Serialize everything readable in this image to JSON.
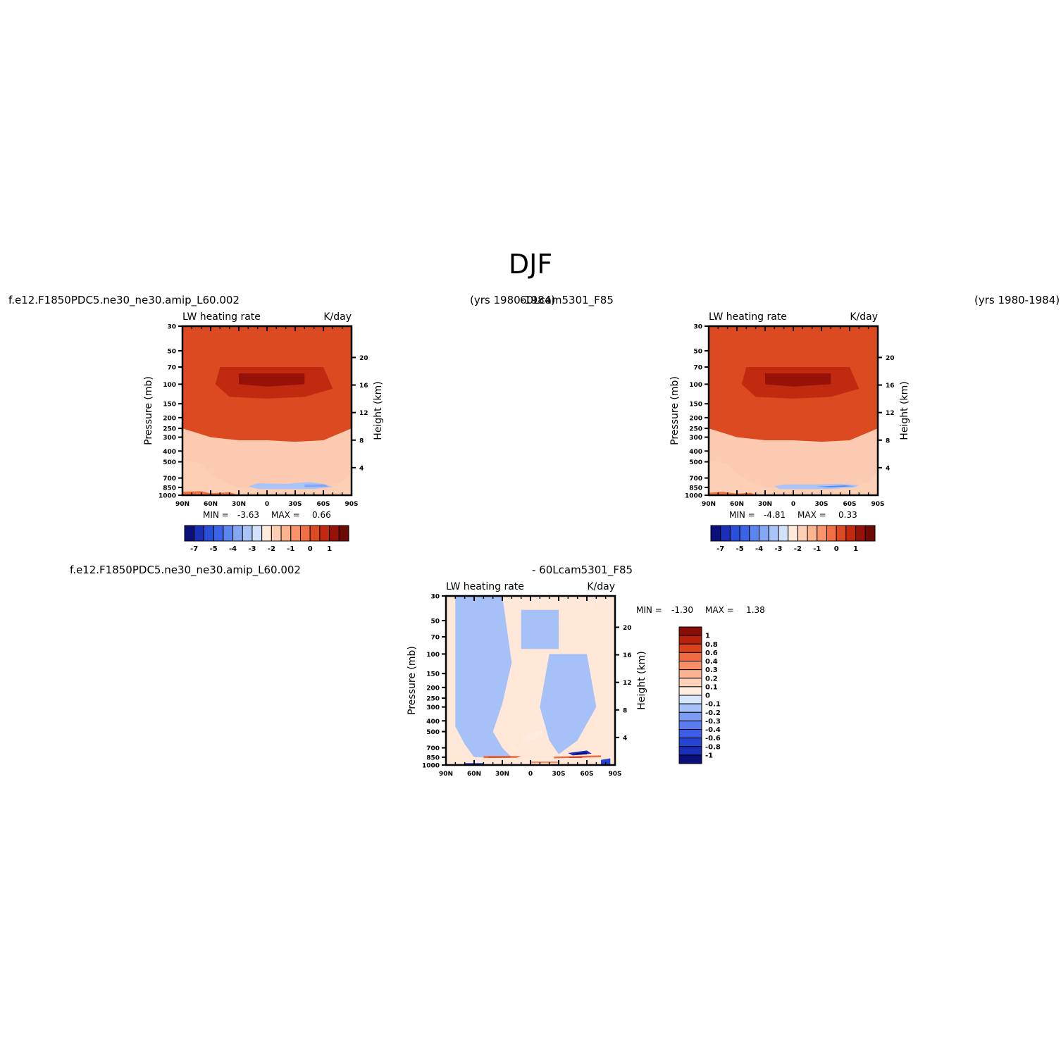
{
  "page": {
    "season_title": "DJF",
    "panel1": {
      "case_name": "f.e12.F1850PDC5.ne30_ne30.amip_L60.002",
      "years": "(yrs 1980-1984)"
    },
    "panel2": {
      "case_name": "60Lcam5301_F85",
      "years": "(yrs 1980-1984)"
    },
    "panel3": {
      "case_name": "f.e12.F1850PDC5.ne30_ne30.amip_L60.002",
      "minus_case": "- 60Lcam5301_F85"
    }
  },
  "colors": {
    "abs_scale": [
      "#0b0f7a",
      "#1a2fb8",
      "#2a4fd8",
      "#3a63e8",
      "#5a86f0",
      "#84a7f5",
      "#aac4f8",
      "#d2e2fb",
      "#ffeadc",
      "#fdd0b6",
      "#fcb48e",
      "#f99468",
      "#f07044",
      "#dc4a22",
      "#c22a10",
      "#961208",
      "#6e0a04"
    ],
    "diff_scale": [
      "#0b0f7a",
      "#1a2fb8",
      "#2443d2",
      "#3a5ce6",
      "#5a7cf0",
      "#7c9cf4",
      "#a6c0f8",
      "#d6e6fc",
      "#ffece0",
      "#fdd2b8",
      "#fbb290",
      "#f88e64",
      "#ef6a40",
      "#d9441c",
      "#b8220c",
      "#8a0c06"
    ],
    "frame": "#000000"
  },
  "chart_data": [
    {
      "type": "heatmap",
      "title": "LW heating rate",
      "units": "K/day",
      "xlabel": "",
      "ylabel": "Pressure (mb)",
      "ylabel_right": "Height (km)",
      "x_ticks": [
        "90N",
        "60N",
        "30N",
        "0",
        "30S",
        "60S",
        "90S"
      ],
      "y_ticks": [
        "30",
        "50",
        "70",
        "100",
        "150",
        "200",
        "250",
        "300",
        "400",
        "500",
        "700",
        "850",
        "1000"
      ],
      "y_right_ticks": [
        "20",
        "16",
        "12",
        "8",
        "4"
      ],
      "xlim": [
        90,
        -90
      ],
      "ylim": [
        1000,
        30
      ],
      "min_label": "MIN =",
      "min_value": "-3.63",
      "max_label": "MAX =",
      "max_value": "0.66",
      "colorbar_ticks": [
        "-7",
        "-5",
        "-4",
        "-3",
        "-2",
        "-1",
        "0",
        "1"
      ],
      "field": [
        {
          "level": 0.4,
          "poly": [
            [
              -90,
              30
            ],
            [
              90,
              30
            ],
            [
              90,
              250
            ],
            [
              60,
              300
            ],
            [
              30,
              320
            ],
            [
              0,
              320
            ],
            [
              -30,
              330
            ],
            [
              -60,
              320
            ],
            [
              -90,
              250
            ]
          ]
        },
        {
          "level": 0.6,
          "poly": [
            [
              50,
              70
            ],
            [
              -60,
              70
            ],
            [
              -70,
              110
            ],
            [
              -40,
              130
            ],
            [
              0,
              135
            ],
            [
              40,
              130
            ],
            [
              55,
              100
            ]
          ]
        },
        {
          "level": 0.8,
          "poly": [
            [
              30,
              80
            ],
            [
              -40,
              80
            ],
            [
              -40,
              100
            ],
            [
              0,
              105
            ],
            [
              30,
              100
            ]
          ]
        },
        {
          "level": -1.3,
          "poly": [
            [
              90,
              1000
            ],
            [
              90,
              480
            ],
            [
              70,
              520
            ],
            [
              60,
              640
            ],
            [
              45,
              760
            ],
            [
              30,
              850
            ],
            [
              0,
              880
            ],
            [
              -30,
              880
            ],
            [
              -60,
              850
            ],
            [
              -80,
              760
            ],
            [
              -90,
              620
            ],
            [
              -90,
              1000
            ]
          ]
        },
        {
          "level": -2.6,
          "poly": [
            [
              20,
              830
            ],
            [
              10,
              780
            ],
            [
              -20,
              790
            ],
            [
              -45,
              760
            ],
            [
              -60,
              790
            ],
            [
              -70,
              840
            ],
            [
              -50,
              880
            ],
            [
              -20,
              880
            ],
            [
              10,
              880
            ]
          ]
        },
        {
          "level": -3.4,
          "poly": [
            [
              -40,
              800
            ],
            [
              -62,
              800
            ],
            [
              -65,
              840
            ],
            [
              -40,
              845
            ]
          ]
        },
        {
          "level": 0.2,
          "poly": [
            [
              90,
              1000
            ],
            [
              30,
              1000
            ],
            [
              40,
              940
            ],
            [
              60,
              960
            ],
            [
              70,
              920
            ],
            [
              90,
              930
            ]
          ]
        }
      ]
    },
    {
      "type": "heatmap",
      "title": "LW heating rate",
      "units": "K/day",
      "xlabel": "",
      "ylabel": "Pressure (mb)",
      "ylabel_right": "Height (km)",
      "x_ticks": [
        "90N",
        "60N",
        "30N",
        "0",
        "30S",
        "60S",
        "90S"
      ],
      "y_ticks": [
        "30",
        "50",
        "70",
        "100",
        "150",
        "200",
        "250",
        "300",
        "400",
        "500",
        "700",
        "850",
        "1000"
      ],
      "y_right_ticks": [
        "20",
        "16",
        "12",
        "8",
        "4"
      ],
      "xlim": [
        90,
        -90
      ],
      "ylim": [
        1000,
        30
      ],
      "min_label": "MIN =",
      "min_value": "-4.81",
      "max_label": "MAX =",
      "max_value": "0.33",
      "colorbar_ticks": [
        "-7",
        "-5",
        "-4",
        "-3",
        "-2",
        "-1",
        "0",
        "1"
      ],
      "field": [
        {
          "level": 0.4,
          "poly": [
            [
              -90,
              30
            ],
            [
              90,
              30
            ],
            [
              90,
              250
            ],
            [
              60,
              300
            ],
            [
              30,
              320
            ],
            [
              0,
              320
            ],
            [
              -30,
              330
            ],
            [
              -60,
              320
            ],
            [
              -90,
              250
            ]
          ]
        },
        {
          "level": 0.6,
          "poly": [
            [
              50,
              70
            ],
            [
              -60,
              70
            ],
            [
              -70,
              110
            ],
            [
              -40,
              130
            ],
            [
              0,
              135
            ],
            [
              40,
              130
            ],
            [
              55,
              100
            ]
          ]
        },
        {
          "level": 0.8,
          "poly": [
            [
              30,
              80
            ],
            [
              -40,
              80
            ],
            [
              -40,
              100
            ],
            [
              0,
              105
            ],
            [
              30,
              100
            ]
          ]
        },
        {
          "level": -1.3,
          "poly": [
            [
              90,
              1000
            ],
            [
              90,
              480
            ],
            [
              70,
              520
            ],
            [
              60,
              640
            ],
            [
              45,
              760
            ],
            [
              30,
              850
            ],
            [
              0,
              880
            ],
            [
              -30,
              880
            ],
            [
              -60,
              850
            ],
            [
              -80,
              760
            ],
            [
              -90,
              620
            ],
            [
              -90,
              1000
            ]
          ]
        },
        {
          "level": -2.6,
          "poly": [
            [
              20,
              830
            ],
            [
              10,
              800
            ],
            [
              -20,
              800
            ],
            [
              -50,
              790
            ],
            [
              -70,
              810
            ],
            [
              -65,
              850
            ],
            [
              -40,
              880
            ],
            [
              -10,
              880
            ],
            [
              15,
              880
            ]
          ]
        },
        {
          "level": -3.6,
          "poly": [
            [
              -25,
              835
            ],
            [
              -55,
              815
            ],
            [
              -65,
              830
            ],
            [
              -40,
              850
            ]
          ]
        },
        {
          "level": 0.2,
          "poly": [
            [
              90,
              1000
            ],
            [
              40,
              1000
            ],
            [
              45,
              950
            ],
            [
              60,
              970
            ],
            [
              75,
              930
            ],
            [
              90,
              950
            ]
          ]
        }
      ]
    },
    {
      "type": "heatmap",
      "title": "LW heating rate",
      "units": "K/day",
      "xlabel": "",
      "ylabel": "Pressure (mb)",
      "ylabel_right": "Height (km)",
      "x_ticks": [
        "90N",
        "60N",
        "30N",
        "0",
        "30S",
        "60S",
        "90S"
      ],
      "y_ticks": [
        "30",
        "50",
        "70",
        "100",
        "150",
        "200",
        "250",
        "300",
        "400",
        "500",
        "700",
        "850",
        "1000"
      ],
      "y_right_ticks": [
        "20",
        "16",
        "12",
        "8",
        "4"
      ],
      "xlim": [
        90,
        -90
      ],
      "ylim": [
        1000,
        30
      ],
      "min_label": "MIN =",
      "min_value": "-1.30",
      "max_label": "MAX =",
      "max_value": "1.38",
      "colorbar_ticks": [
        "1",
        "0.8",
        "0.6",
        "0.4",
        "0.3",
        "0.2",
        "0.1",
        "0",
        "-0.1",
        "-0.2",
        "-0.3",
        "-0.4",
        "-0.6",
        "-0.8",
        "-1"
      ],
      "field": [
        {
          "level": -0.05,
          "poly": [
            [
              80,
              30
            ],
            [
              30,
              30
            ],
            [
              20,
              120
            ],
            [
              30,
              280
            ],
            [
              40,
              500
            ],
            [
              30,
              700
            ],
            [
              20,
              850
            ],
            [
              60,
              850
            ],
            [
              70,
              650
            ],
            [
              80,
              450
            ]
          ]
        },
        {
          "level": -0.05,
          "poly": [
            [
              -20,
              100
            ],
            [
              -60,
              100
            ],
            [
              -70,
              300
            ],
            [
              -50,
              600
            ],
            [
              -30,
              800
            ],
            [
              -20,
              600
            ],
            [
              -10,
              300
            ]
          ]
        },
        {
          "level": -0.05,
          "poly": [
            [
              10,
              40
            ],
            [
              -30,
              40
            ],
            [
              -30,
              90
            ],
            [
              10,
              90
            ]
          ]
        },
        {
          "level": 0.15,
          "poly": [
            [
              -5,
              500
            ],
            [
              -15,
              490
            ],
            [
              -10,
              560
            ],
            [
              5,
              620
            ],
            [
              10,
              570
            ]
          ]
        },
        {
          "level": 0.7,
          "poly": [
            [
              50,
              830
            ],
            [
              10,
              830
            ],
            [
              15,
              860
            ],
            [
              50,
              865
            ]
          ]
        },
        {
          "level": 0.9,
          "poly": [
            [
              45,
              840
            ],
            [
              20,
              838
            ],
            [
              22,
              855
            ],
            [
              45,
              858
            ]
          ]
        },
        {
          "level": 0.7,
          "poly": [
            [
              -25,
              840
            ],
            [
              -75,
              820
            ],
            [
              -75,
              850
            ],
            [
              -25,
              870
            ]
          ]
        },
        {
          "level": 1.1,
          "poly": [
            [
              -40,
              850
            ],
            [
              -55,
              845
            ],
            [
              -55,
              860
            ],
            [
              -42,
              862
            ]
          ]
        },
        {
          "level": -0.8,
          "poly": [
            [
              -40,
              780
            ],
            [
              -60,
              740
            ],
            [
              -65,
              790
            ],
            [
              -45,
              820
            ]
          ]
        },
        {
          "level": -1.1,
          "poly": [
            [
              -45,
              790
            ],
            [
              -60,
              770
            ],
            [
              -60,
              800
            ],
            [
              -50,
              810
            ]
          ]
        },
        {
          "level": 0.5,
          "poly": [
            [
              0,
              930
            ],
            [
              -30,
              930
            ],
            [
              -30,
              960
            ],
            [
              0,
              960
            ]
          ]
        },
        {
          "level": -0.5,
          "poly": [
            [
              70,
              960
            ],
            [
              50,
              960
            ],
            [
              50,
              1000
            ],
            [
              70,
              1000
            ]
          ]
        },
        {
          "level": -0.5,
          "poly": [
            [
              -75,
              900
            ],
            [
              -85,
              870
            ],
            [
              -85,
              1000
            ],
            [
              -75,
              1000
            ]
          ]
        }
      ]
    }
  ]
}
